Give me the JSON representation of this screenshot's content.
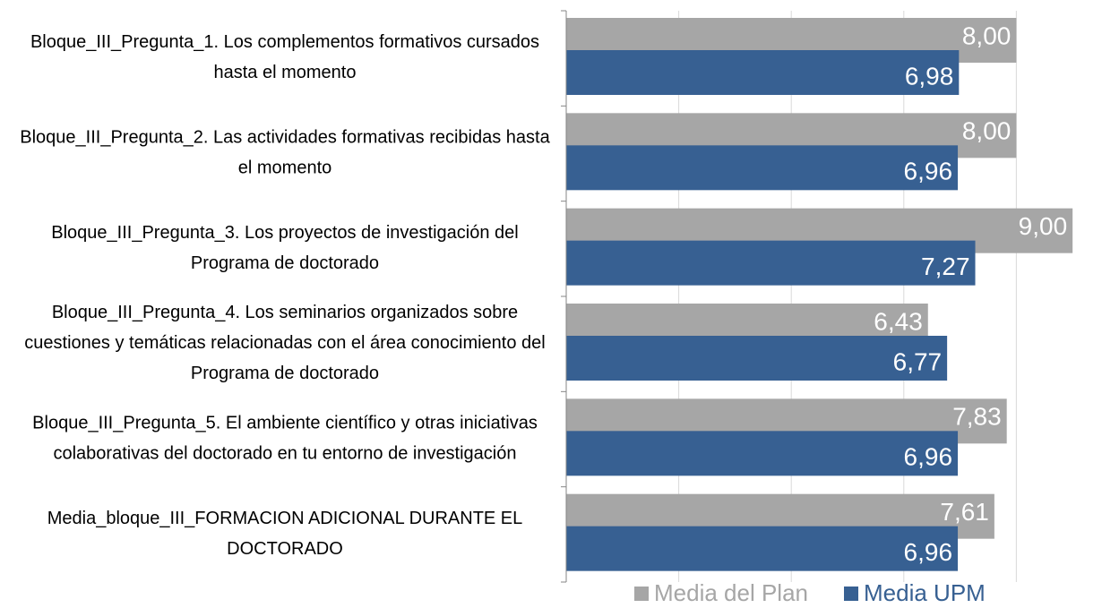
{
  "chart_data": {
    "type": "hbar",
    "categories": [
      "Bloque_III_Pregunta_1. Los complementos formativos cursados hasta el momento",
      "Bloque_III_Pregunta_2. Las actividades formativas recibidas hasta el momento",
      "Bloque_III_Pregunta_3. Los proyectos de investigación del Programa de doctorado",
      "Bloque_III_Pregunta_4. Los seminarios organizados sobre cuestiones y temáticas relacionadas con el área conocimiento del Programa de doctorado",
      "Bloque_III_Pregunta_5. El ambiente científico y otras iniciativas colaborativas del doctorado en tu entorno de investigación",
      "Media_bloque_III_FORMACION ADICIONAL DURANTE EL DOCTORADO"
    ],
    "series": [
      {
        "name": "Media del Plan",
        "color": "#a6a6a6",
        "values": [
          8.0,
          8.0,
          9.0,
          6.43,
          7.83,
          7.61
        ],
        "value_labels": [
          "8,00",
          "8,00",
          "9,00",
          "6,43",
          "7,83",
          "7,61"
        ]
      },
      {
        "name": "Media UPM",
        "color": "#376092",
        "values": [
          6.98,
          6.96,
          7.27,
          6.77,
          6.96,
          6.96
        ],
        "value_labels": [
          "6,98",
          "6,96",
          "7,27",
          "6,77",
          "6,96",
          "6,96"
        ]
      }
    ],
    "xlim": [
      0,
      9.3
    ],
    "xticks": [
      0,
      2,
      4,
      6,
      8
    ],
    "grid": true,
    "legend": "bottom"
  }
}
